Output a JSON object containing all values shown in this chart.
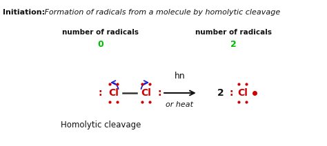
{
  "bg_color": "#ffffff",
  "title_bold": "Initiation:",
  "title_italic": " Formation of radicals from a molecule by homolytic cleavage",
  "left_label_line1": "number of radicals",
  "left_label_num": "0",
  "right_label_line1": "number of radicals",
  "right_label_num": "2",
  "green_color": "#00bb00",
  "red_color": "#cc0000",
  "blue_color": "#2222cc",
  "black_color": "#111111",
  "arrow_label_top": "hn",
  "arrow_label_bot": "or heat",
  "bottom_label": "Homolytic cleavage",
  "figsize": [
    4.74,
    2.12
  ],
  "dpi": 100
}
